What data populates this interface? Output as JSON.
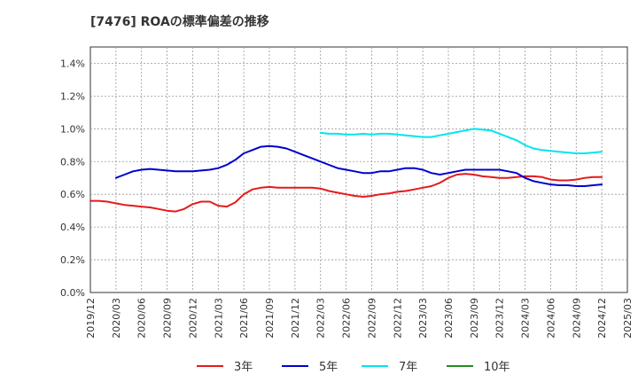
{
  "chart_data": {
    "type": "line",
    "title": "[7476]  ROAの標準偏差の推移",
    "xlabel": "",
    "ylabel": "",
    "ylim": [
      0,
      0.015
    ],
    "grid": true,
    "legend_position": "bottom",
    "y_ticks": [
      {
        "value": 0.0,
        "label": "0.0%"
      },
      {
        "value": 0.002,
        "label": "0.2%"
      },
      {
        "value": 0.004,
        "label": "0.4%"
      },
      {
        "value": 0.006,
        "label": "0.6%"
      },
      {
        "value": 0.008,
        "label": "0.8%"
      },
      {
        "value": 0.01,
        "label": "1.0%"
      },
      {
        "value": 0.012,
        "label": "1.2%"
      },
      {
        "value": 0.014,
        "label": "1.4%"
      }
    ],
    "x_ticks": [
      "2019/12",
      "2020/03",
      "2020/06",
      "2020/09",
      "2020/12",
      "2021/03",
      "2021/06",
      "2021/09",
      "2021/12",
      "2022/03",
      "2022/06",
      "2022/09",
      "2022/12",
      "2023/03",
      "2023/06",
      "2023/09",
      "2023/12",
      "2024/03",
      "2024/06",
      "2024/09",
      "2024/12",
      "2025/03"
    ],
    "series": [
      {
        "name": "3年",
        "color": "#e41a1c",
        "points": [
          [
            "2019/12",
            0.0056
          ],
          [
            "2020/01",
            0.0056
          ],
          [
            "2020/02",
            0.00555
          ],
          [
            "2020/03",
            0.00545
          ],
          [
            "2020/04",
            0.00535
          ],
          [
            "2020/05",
            0.0053
          ],
          [
            "2020/06",
            0.00525
          ],
          [
            "2020/07",
            0.0052
          ],
          [
            "2020/08",
            0.0051
          ],
          [
            "2020/09",
            0.005
          ],
          [
            "2020/10",
            0.00495
          ],
          [
            "2020/11",
            0.0051
          ],
          [
            "2020/12",
            0.0054
          ],
          [
            "2021/01",
            0.00555
          ],
          [
            "2021/02",
            0.00555
          ],
          [
            "2021/03",
            0.0053
          ],
          [
            "2021/04",
            0.00525
          ],
          [
            "2021/05",
            0.0055
          ],
          [
            "2021/06",
            0.006
          ],
          [
            "2021/07",
            0.0063
          ],
          [
            "2021/08",
            0.0064
          ],
          [
            "2021/09",
            0.00645
          ],
          [
            "2021/10",
            0.0064
          ],
          [
            "2021/11",
            0.0064
          ],
          [
            "2021/12",
            0.0064
          ],
          [
            "2022/01",
            0.0064
          ],
          [
            "2022/02",
            0.0064
          ],
          [
            "2022/03",
            0.00635
          ],
          [
            "2022/04",
            0.0062
          ],
          [
            "2022/05",
            0.0061
          ],
          [
            "2022/06",
            0.006
          ],
          [
            "2022/07",
            0.0059
          ],
          [
            "2022/08",
            0.00585
          ],
          [
            "2022/09",
            0.0059
          ],
          [
            "2022/10",
            0.006
          ],
          [
            "2022/11",
            0.00605
          ],
          [
            "2022/12",
            0.00615
          ],
          [
            "2023/01",
            0.0062
          ],
          [
            "2023/02",
            0.0063
          ],
          [
            "2023/03",
            0.0064
          ],
          [
            "2023/04",
            0.0065
          ],
          [
            "2023/05",
            0.0067
          ],
          [
            "2023/06",
            0.007
          ],
          [
            "2023/07",
            0.0072
          ],
          [
            "2023/08",
            0.00725
          ],
          [
            "2023/09",
            0.0072
          ],
          [
            "2023/10",
            0.0071
          ],
          [
            "2023/11",
            0.00705
          ],
          [
            "2023/12",
            0.007
          ],
          [
            "2024/01",
            0.007
          ],
          [
            "2024/02",
            0.00705
          ],
          [
            "2024/03",
            0.0071
          ],
          [
            "2024/04",
            0.0071
          ],
          [
            "2024/05",
            0.00705
          ],
          [
            "2024/06",
            0.0069
          ],
          [
            "2024/07",
            0.00685
          ],
          [
            "2024/08",
            0.00685
          ],
          [
            "2024/09",
            0.0069
          ],
          [
            "2024/10",
            0.007
          ],
          [
            "2024/11",
            0.00705
          ],
          [
            "2024/12",
            0.00705
          ]
        ]
      },
      {
        "name": "5年",
        "color": "#0000cc",
        "points": [
          [
            "2020/03",
            0.007
          ],
          [
            "2020/04",
            0.0072
          ],
          [
            "2020/05",
            0.0074
          ],
          [
            "2020/06",
            0.0075
          ],
          [
            "2020/07",
            0.00755
          ],
          [
            "2020/08",
            0.0075
          ],
          [
            "2020/09",
            0.00745
          ],
          [
            "2020/10",
            0.0074
          ],
          [
            "2020/11",
            0.0074
          ],
          [
            "2020/12",
            0.0074
          ],
          [
            "2021/01",
            0.00745
          ],
          [
            "2021/02",
            0.0075
          ],
          [
            "2021/03",
            0.0076
          ],
          [
            "2021/04",
            0.0078
          ],
          [
            "2021/05",
            0.0081
          ],
          [
            "2021/06",
            0.0085
          ],
          [
            "2021/07",
            0.0087
          ],
          [
            "2021/08",
            0.0089
          ],
          [
            "2021/09",
            0.00895
          ],
          [
            "2021/10",
            0.0089
          ],
          [
            "2021/11",
            0.0088
          ],
          [
            "2021/12",
            0.0086
          ],
          [
            "2022/01",
            0.0084
          ],
          [
            "2022/02",
            0.0082
          ],
          [
            "2022/03",
            0.008
          ],
          [
            "2022/04",
            0.0078
          ],
          [
            "2022/05",
            0.0076
          ],
          [
            "2022/06",
            0.0075
          ],
          [
            "2022/07",
            0.0074
          ],
          [
            "2022/08",
            0.0073
          ],
          [
            "2022/09",
            0.0073
          ],
          [
            "2022/10",
            0.0074
          ],
          [
            "2022/11",
            0.0074
          ],
          [
            "2022/12",
            0.0075
          ],
          [
            "2023/01",
            0.0076
          ],
          [
            "2023/02",
            0.0076
          ],
          [
            "2023/03",
            0.0075
          ],
          [
            "2023/04",
            0.0073
          ],
          [
            "2023/05",
            0.0072
          ],
          [
            "2023/06",
            0.0073
          ],
          [
            "2023/07",
            0.0074
          ],
          [
            "2023/08",
            0.0075
          ],
          [
            "2023/09",
            0.0075
          ],
          [
            "2023/10",
            0.0075
          ],
          [
            "2023/11",
            0.0075
          ],
          [
            "2023/12",
            0.0075
          ],
          [
            "2024/01",
            0.0074
          ],
          [
            "2024/02",
            0.0073
          ],
          [
            "2024/03",
            0.007
          ],
          [
            "2024/04",
            0.0068
          ],
          [
            "2024/05",
            0.0067
          ],
          [
            "2024/06",
            0.0066
          ],
          [
            "2024/07",
            0.00655
          ],
          [
            "2024/08",
            0.00655
          ],
          [
            "2024/09",
            0.0065
          ],
          [
            "2024/10",
            0.0065
          ],
          [
            "2024/11",
            0.00655
          ],
          [
            "2024/12",
            0.0066
          ]
        ]
      },
      {
        "name": "7年",
        "color": "#00e5ee",
        "points": [
          [
            "2022/03",
            0.00975
          ],
          [
            "2022/04",
            0.0097
          ],
          [
            "2022/05",
            0.0097
          ],
          [
            "2022/06",
            0.00965
          ],
          [
            "2022/07",
            0.00965
          ],
          [
            "2022/08",
            0.0097
          ],
          [
            "2022/09",
            0.00965
          ],
          [
            "2022/10",
            0.0097
          ],
          [
            "2022/11",
            0.0097
          ],
          [
            "2022/12",
            0.00965
          ],
          [
            "2023/01",
            0.0096
          ],
          [
            "2023/02",
            0.00955
          ],
          [
            "2023/03",
            0.0095
          ],
          [
            "2023/04",
            0.0095
          ],
          [
            "2023/05",
            0.0096
          ],
          [
            "2023/06",
            0.0097
          ],
          [
            "2023/07",
            0.0098
          ],
          [
            "2023/08",
            0.0099
          ],
          [
            "2023/09",
            0.01
          ],
          [
            "2023/10",
            0.00995
          ],
          [
            "2023/11",
            0.0099
          ],
          [
            "2023/12",
            0.0097
          ],
          [
            "2024/01",
            0.0095
          ],
          [
            "2024/02",
            0.0093
          ],
          [
            "2024/03",
            0.009
          ],
          [
            "2024/04",
            0.0088
          ],
          [
            "2024/05",
            0.0087
          ],
          [
            "2024/06",
            0.00865
          ],
          [
            "2024/07",
            0.0086
          ],
          [
            "2024/08",
            0.00855
          ],
          [
            "2024/09",
            0.0085
          ],
          [
            "2024/10",
            0.0085
          ],
          [
            "2024/11",
            0.00855
          ],
          [
            "2024/12",
            0.0086
          ]
        ]
      },
      {
        "name": "10年",
        "color": "#228b22",
        "points": []
      }
    ]
  }
}
